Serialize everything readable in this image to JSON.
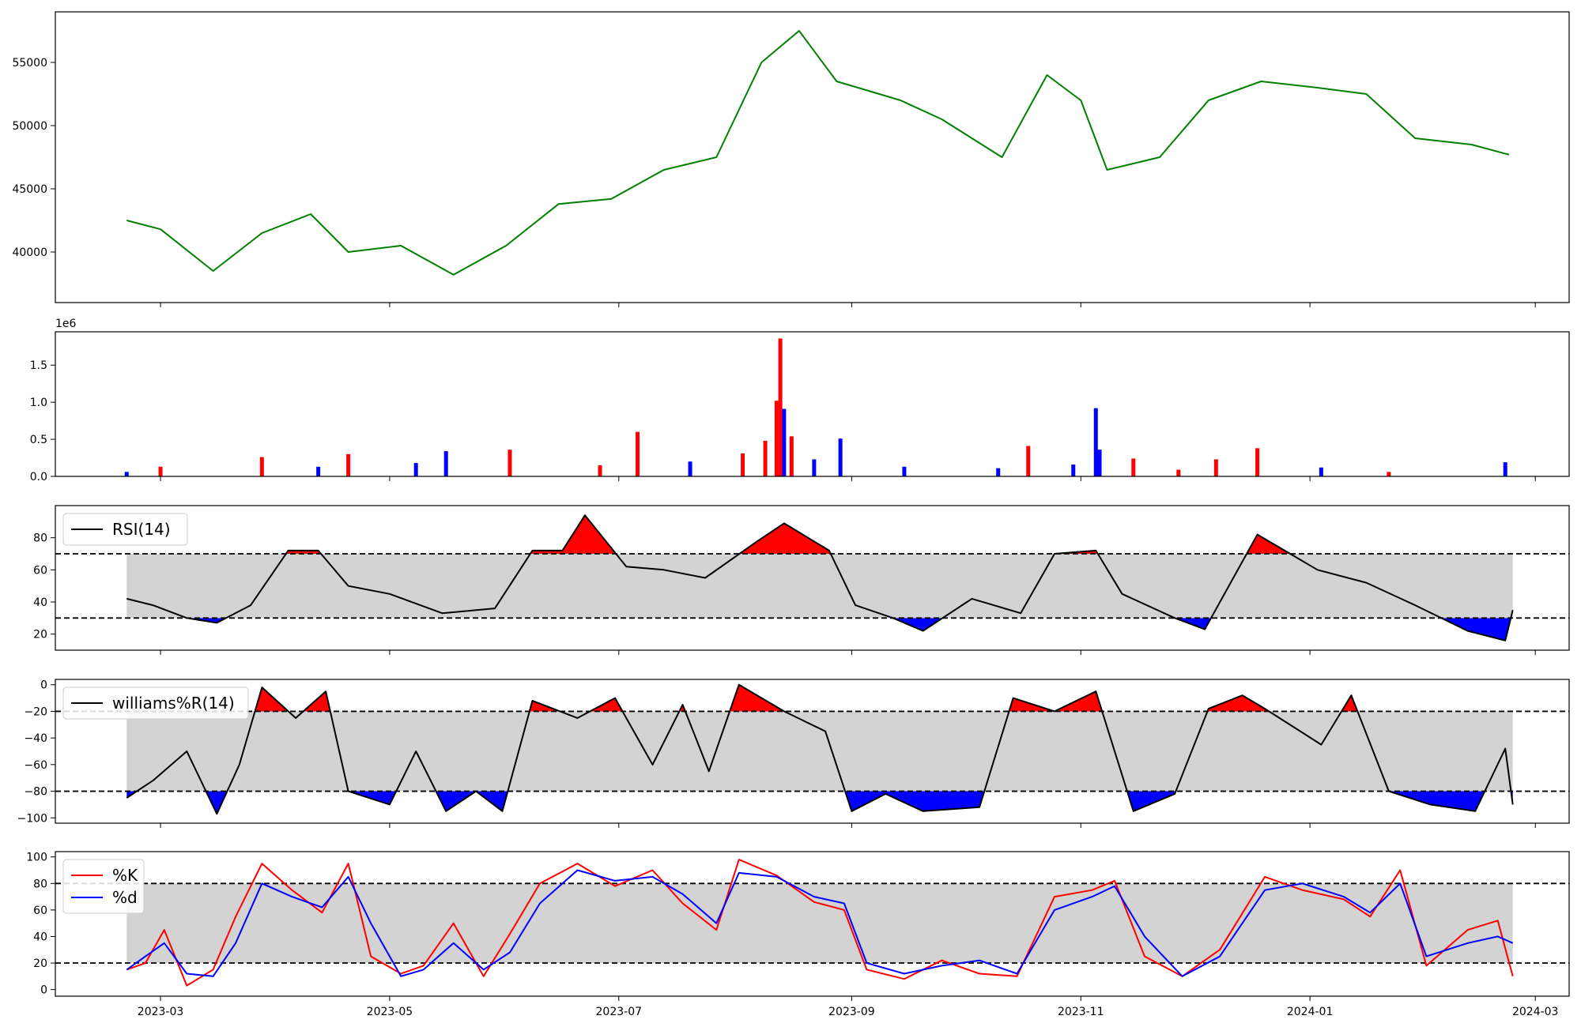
{
  "chart_data": [
    {
      "type": "line",
      "ylim": [
        36000,
        59000
      ],
      "yticks": [
        40000,
        45000,
        50000,
        55000
      ],
      "color": "#008000",
      "x": [
        "2023-02-20",
        "2023-03-01",
        "2023-03-15",
        "2023-03-28",
        "2023-04-10",
        "2023-04-20",
        "2023-05-04",
        "2023-05-18",
        "2023-06-01",
        "2023-06-15",
        "2023-06-29",
        "2023-07-13",
        "2023-07-27",
        "2023-08-08",
        "2023-08-18",
        "2023-08-28",
        "2023-09-14",
        "2023-09-25",
        "2023-10-11",
        "2023-10-23",
        "2023-11-01",
        "2023-11-08",
        "2023-11-22",
        "2023-12-05",
        "2023-12-19",
        "2024-01-03",
        "2024-01-16",
        "2024-01-29",
        "2024-02-13",
        "2024-02-23"
      ],
      "values": [
        42500,
        41800,
        38500,
        41500,
        43000,
        40000,
        40500,
        38200,
        40500,
        43800,
        44200,
        46500,
        47500,
        55000,
        57500,
        53500,
        52000,
        50500,
        47500,
        54000,
        52000,
        46500,
        47500,
        52000,
        53500,
        53000,
        52500,
        49000,
        48500,
        47700
      ]
    },
    {
      "type": "bar",
      "scale_label": "1e6",
      "ylim": [
        0,
        1950000
      ],
      "yticks": [
        0,
        500000,
        1000000,
        1500000
      ],
      "ytick_labels": [
        "0.0",
        "0.5",
        "1.0",
        "1.5"
      ],
      "colors": {
        "up": "#ff0000",
        "down": "#0000ff",
        "flat": "#000000"
      },
      "x": [
        "2023-02-20",
        "2023-03-01",
        "2023-03-28",
        "2023-04-12",
        "2023-04-20",
        "2023-05-08",
        "2023-05-16",
        "2023-06-02",
        "2023-06-26",
        "2023-07-06",
        "2023-07-20",
        "2023-08-03",
        "2023-08-09",
        "2023-08-12",
        "2023-08-13",
        "2023-08-14",
        "2023-08-16",
        "2023-08-22",
        "2023-08-29",
        "2023-09-15",
        "2023-10-10",
        "2023-10-18",
        "2023-10-30",
        "2023-11-05",
        "2023-11-06",
        "2023-11-15",
        "2023-11-27",
        "2023-12-07",
        "2023-12-18",
        "2024-01-04",
        "2024-01-22",
        "2024-02-22"
      ],
      "values": [
        60000,
        130000,
        260000,
        130000,
        300000,
        180000,
        340000,
        360000,
        150000,
        600000,
        200000,
        310000,
        480000,
        1020000,
        1860000,
        910000,
        540000,
        230000,
        510000,
        130000,
        110000,
        410000,
        160000,
        920000,
        360000,
        240000,
        90000,
        230000,
        380000,
        120000,
        60000,
        190000
      ],
      "direction": [
        "down",
        "up",
        "up",
        "down",
        "up",
        "down",
        "down",
        "up",
        "up",
        "up",
        "down",
        "up",
        "up",
        "up",
        "up",
        "down",
        "up",
        "down",
        "down",
        "down",
        "down",
        "up",
        "down",
        "down",
        "down",
        "up",
        "up",
        "up",
        "up",
        "down",
        "up",
        "down"
      ]
    },
    {
      "type": "line",
      "legend": "RSI(14)",
      "ylim": [
        10,
        100
      ],
      "yticks": [
        20,
        40,
        60,
        80
      ],
      "thresholds": [
        30,
        70
      ],
      "fill_colors": {
        "band": "#d3d3d3",
        "above": "#ff0000",
        "below": "#0000ff"
      },
      "x": [
        "2023-02-20",
        "2023-02-27",
        "2023-03-08",
        "2023-03-16",
        "2023-03-25",
        "2023-04-04",
        "2023-04-12",
        "2023-04-20",
        "2023-05-01",
        "2023-05-15",
        "2023-05-29",
        "2023-06-08",
        "2023-06-16",
        "2023-06-22",
        "2023-07-03",
        "2023-07-13",
        "2023-07-24",
        "2023-08-07",
        "2023-08-14",
        "2023-08-26",
        "2023-09-02",
        "2023-09-12",
        "2023-09-20",
        "2023-10-03",
        "2023-10-16",
        "2023-10-25",
        "2023-11-05",
        "2023-11-12",
        "2023-11-26",
        "2023-12-04",
        "2023-12-18",
        "2024-01-03",
        "2024-01-16",
        "2024-01-29",
        "2024-02-12",
        "2024-02-22",
        "2024-02-24"
      ],
      "values": [
        42,
        38,
        30,
        27,
        38,
        72,
        72,
        50,
        45,
        33,
        36,
        72,
        72,
        94,
        62,
        60,
        55,
        78,
        89,
        72,
        38,
        30,
        22,
        42,
        33,
        70,
        72,
        45,
        30,
        23,
        82,
        60,
        52,
        38,
        22,
        16,
        35
      ]
    },
    {
      "type": "line",
      "legend": "williams%R(14)",
      "ylim": [
        -104,
        4
      ],
      "yticks": [
        0,
        -20,
        -40,
        -60,
        -80,
        -100
      ],
      "ytick_labels": [
        "0",
        "−20",
        "−40",
        "−60",
        "−80",
        "−100"
      ],
      "thresholds": [
        -20,
        -80
      ],
      "fill_colors": {
        "band": "#d3d3d3",
        "above": "#ff0000",
        "below": "#0000ff"
      },
      "x": [
        "2023-02-20",
        "2023-02-27",
        "2023-03-08",
        "2023-03-16",
        "2023-03-22",
        "2023-03-28",
        "2023-04-06",
        "2023-04-14",
        "2023-04-20",
        "2023-05-01",
        "2023-05-08",
        "2023-05-16",
        "2023-05-24",
        "2023-05-31",
        "2023-06-08",
        "2023-06-20",
        "2023-06-30",
        "2023-07-10",
        "2023-07-18",
        "2023-07-25",
        "2023-08-02",
        "2023-08-14",
        "2023-08-25",
        "2023-09-01",
        "2023-09-10",
        "2023-09-20",
        "2023-10-05",
        "2023-10-14",
        "2023-10-25",
        "2023-11-05",
        "2023-11-15",
        "2023-11-26",
        "2023-12-05",
        "2023-12-14",
        "2023-12-20",
        "2024-01-04",
        "2024-01-12",
        "2024-01-22",
        "2024-02-02",
        "2024-02-14",
        "2024-02-22",
        "2024-02-24"
      ],
      "values": [
        -85,
        -72,
        -50,
        -97,
        -60,
        -2,
        -25,
        -5,
        -80,
        -90,
        -50,
        -95,
        -80,
        -95,
        -12,
        -25,
        -10,
        -60,
        -15,
        -65,
        0,
        -20,
        -35,
        -95,
        -82,
        -95,
        -92,
        -10,
        -20,
        -5,
        -95,
        -82,
        -18,
        -8,
        -18,
        -45,
        -8,
        -80,
        -90,
        -95,
        -48,
        -90
      ]
    },
    {
      "type": "line",
      "ylim": [
        -5,
        104
      ],
      "yticks": [
        0,
        20,
        40,
        60,
        80,
        100
      ],
      "thresholds": [
        20,
        80
      ],
      "fill_colors": {
        "band": "#d3d3d3"
      },
      "x": [
        "2023-02-20",
        "2023-02-25",
        "2023-03-02",
        "2023-03-08",
        "2023-03-15",
        "2023-03-21",
        "2023-03-28",
        "2023-04-05",
        "2023-04-13",
        "2023-04-20",
        "2023-04-26",
        "2023-05-04",
        "2023-05-10",
        "2023-05-18",
        "2023-05-26",
        "2023-06-02",
        "2023-06-10",
        "2023-06-20",
        "2023-06-30",
        "2023-07-10",
        "2023-07-18",
        "2023-07-27",
        "2023-08-02",
        "2023-08-12",
        "2023-08-22",
        "2023-08-30",
        "2023-09-05",
        "2023-09-15",
        "2023-09-25",
        "2023-10-05",
        "2023-10-15",
        "2023-10-25",
        "2023-11-04",
        "2023-11-10",
        "2023-11-18",
        "2023-11-28",
        "2023-12-08",
        "2023-12-20",
        "2023-12-30",
        "2024-01-10",
        "2024-01-17",
        "2024-01-25",
        "2024-02-01",
        "2024-02-12",
        "2024-02-20",
        "2024-02-24"
      ],
      "series": [
        {
          "name": "%K",
          "color": "#ff0000",
          "values": [
            15,
            20,
            45,
            3,
            15,
            55,
            95,
            75,
            58,
            95,
            25,
            12,
            18,
            50,
            10,
            42,
            80,
            95,
            78,
            90,
            65,
            45,
            98,
            86,
            66,
            60,
            15,
            8,
            22,
            12,
            10,
            70,
            75,
            82,
            25,
            10,
            30,
            85,
            75,
            68,
            55,
            90,
            18,
            45,
            52,
            10
          ]
        },
        {
          "name": "%d",
          "color": "#0000ff",
          "values": [
            15,
            25,
            35,
            12,
            10,
            35,
            80,
            70,
            62,
            85,
            50,
            10,
            15,
            35,
            15,
            28,
            65,
            90,
            82,
            85,
            72,
            50,
            88,
            85,
            70,
            65,
            20,
            12,
            18,
            22,
            12,
            60,
            70,
            78,
            40,
            10,
            25,
            75,
            80,
            70,
            58,
            80,
            25,
            35,
            40,
            35
          ]
        }
      ]
    }
  ],
  "x_axis": {
    "range": [
      "2023-02-01",
      "2024-03-10"
    ],
    "ticks": [
      "2023-03-01",
      "2023-05-01",
      "2023-07-01",
      "2023-09-01",
      "2023-11-01",
      "2024-01-01",
      "2024-03-01"
    ],
    "tick_labels": [
      "2023-03",
      "2023-05",
      "2023-07",
      "2023-09",
      "2023-11",
      "2024-01",
      "2024-03"
    ]
  }
}
